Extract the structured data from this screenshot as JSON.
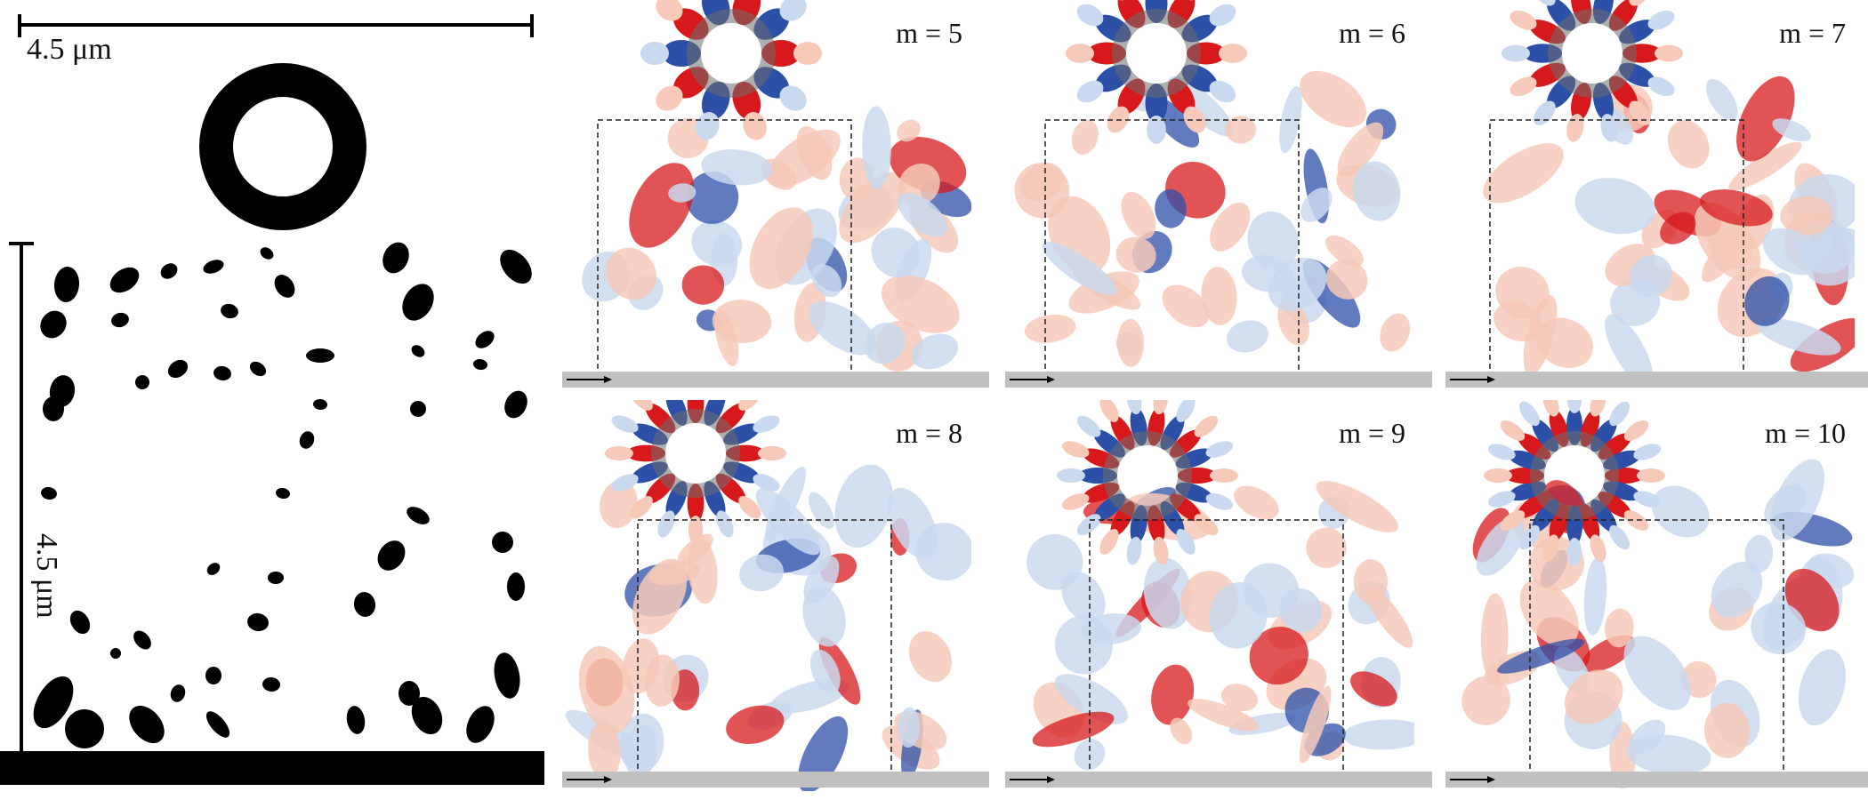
{
  "left_panel": {
    "scale_h_label": "4.5 μm",
    "scale_v_label": "4.5 μm"
  },
  "panels": [
    {
      "label": "m = 5",
      "m": 5
    },
    {
      "label": "m = 6",
      "m": 6
    },
    {
      "label": "m = 7",
      "m": 7
    },
    {
      "label": "m = 8",
      "m": 8
    },
    {
      "label": "m = 9",
      "m": 9
    },
    {
      "label": "m = 10",
      "m": 10
    }
  ],
  "colors": {
    "positive": "#d7191c",
    "negative": "#2c4fa8",
    "light_positive": "#f6c9b8",
    "light_negative": "#c9d9ef",
    "waveguide": "#c0c0c0",
    "ring_overlay": "#6e6e6e",
    "ink": "#000000"
  }
}
